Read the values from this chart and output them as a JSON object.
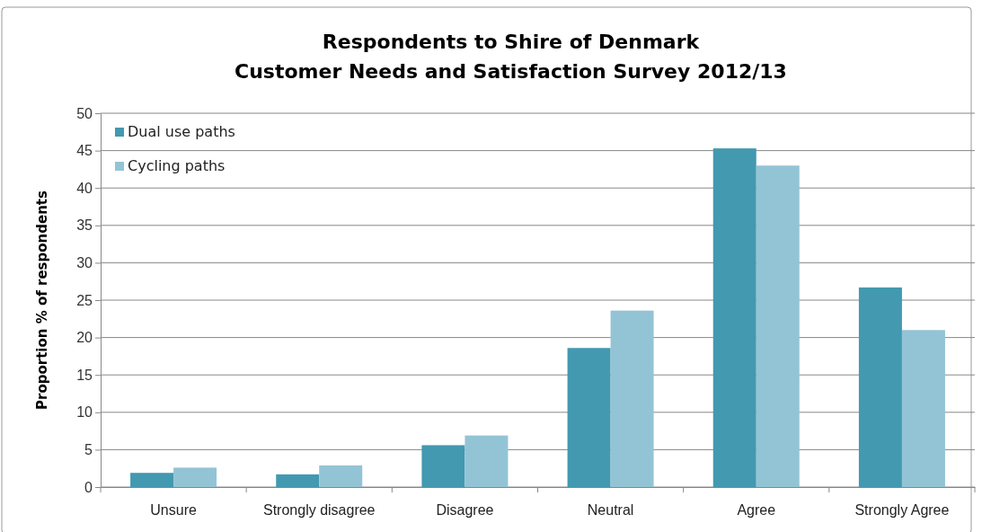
{
  "chart_data": {
    "type": "bar",
    "title": "Respondents to Shire of Denmark\nCustomer Needs and Satisfaction Survey 2012/13",
    "ylabel": "Proportion % of respondents",
    "categories": [
      "Unsure",
      "Strongly disagree",
      "Disagree",
      "Neutral",
      "Agree",
      "Strongly Agree"
    ],
    "series": [
      {
        "name": "Dual use paths",
        "color": "#4299b0",
        "values": [
          1.9,
          1.7,
          5.6,
          18.6,
          45.3,
          26.7
        ]
      },
      {
        "name": "Cycling paths",
        "color": "#93c4d5",
        "values": [
          2.6,
          2.9,
          6.9,
          23.6,
          43.0,
          21.0
        ]
      }
    ],
    "ylim": [
      0,
      50
    ],
    "yticks": [
      0,
      5,
      10,
      15,
      20,
      25,
      30,
      35,
      40,
      45,
      50
    ],
    "grid": "y",
    "legend": "top left"
  }
}
